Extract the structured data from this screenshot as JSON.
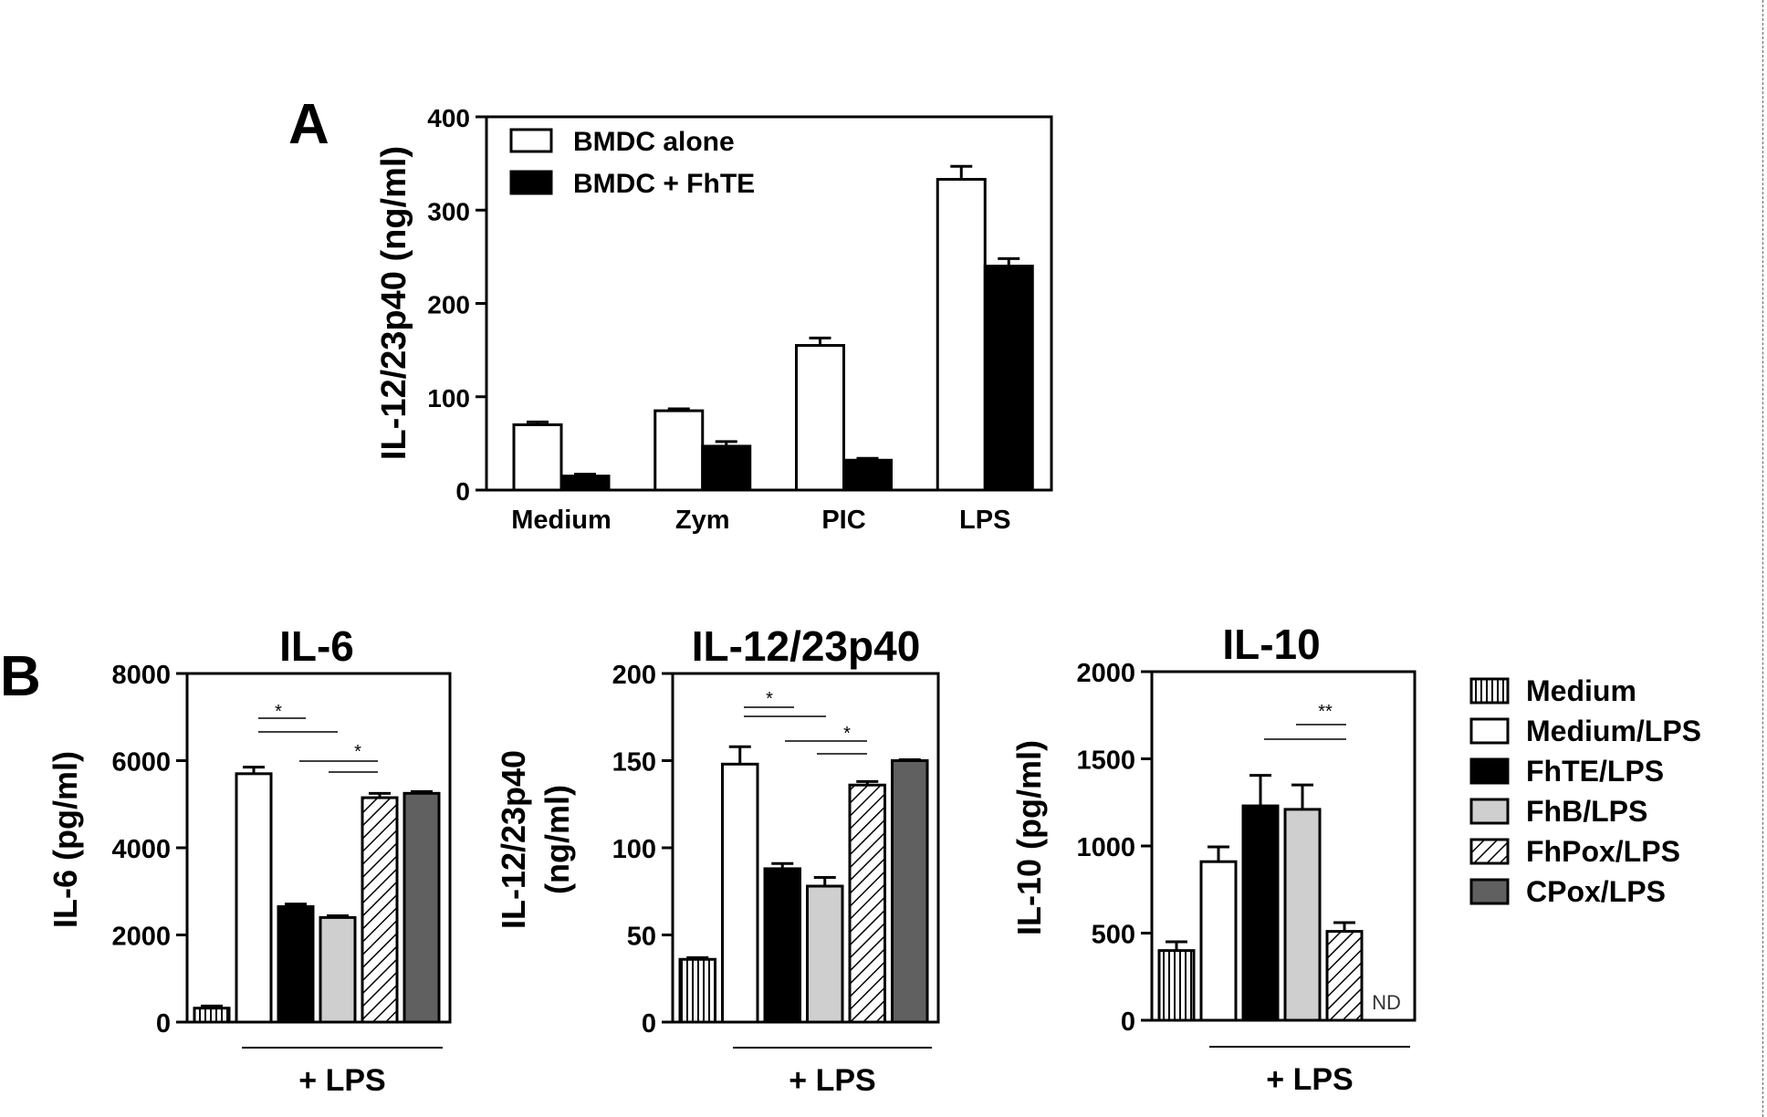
{
  "panel_labels": {
    "a": "A",
    "b": "B"
  },
  "chart_data": [
    {
      "id": "A",
      "type": "bar",
      "title": "",
      "ylabel": "IL-12/23p40 (ng/ml)",
      "xlabel": "",
      "ylim": [
        0,
        400
      ],
      "yticks": [
        0,
        100,
        200,
        300,
        400
      ],
      "categories": [
        "Medium",
        "Zym",
        "PIC",
        "LPS"
      ],
      "series": [
        {
          "name": "BMDC alone",
          "values": [
            70,
            85,
            155,
            333
          ],
          "errors": [
            3,
            2,
            8,
            14
          ],
          "fill": "white"
        },
        {
          "name": "BMDC + FhTE",
          "values": [
            15,
            47,
            32,
            240
          ],
          "errors": [
            2,
            5,
            2,
            8
          ],
          "fill": "black"
        }
      ],
      "legend_position": "top-left"
    },
    {
      "id": "B-IL6",
      "type": "bar",
      "title": "IL-6",
      "ylabel": "IL-6 (pg/ml)",
      "xlabel": "+ LPS",
      "ylim": [
        0,
        8000
      ],
      "yticks": [
        0,
        2000,
        4000,
        6000,
        8000
      ],
      "categories": [
        "Medium",
        "Medium/LPS",
        "FhTE/LPS",
        "FhB/LPS",
        "FhPox/LPS",
        "CPox/LPS"
      ],
      "values": [
        320,
        5700,
        2650,
        2400,
        5150,
        5250
      ],
      "errors": [
        50,
        150,
        60,
        40,
        100,
        40
      ],
      "annotations": [
        "*",
        "*"
      ]
    },
    {
      "id": "B-IL12",
      "type": "bar",
      "title": "IL-12/23p40",
      "ylabel": "IL-12/23p40 (ng/ml)",
      "ylabel_lines": [
        "IL-12/23p40",
        "(ng/ml)"
      ],
      "xlabel": "+ LPS",
      "ylim": [
        0,
        200
      ],
      "yticks": [
        0,
        50,
        100,
        150,
        200
      ],
      "categories": [
        "Medium",
        "Medium/LPS",
        "FhTE/LPS",
        "FhB/LPS",
        "FhPox/LPS",
        "CPox/LPS"
      ],
      "values": [
        36,
        148,
        88,
        78,
        136,
        150
      ],
      "errors": [
        1,
        10,
        3,
        5,
        2,
        0.5
      ],
      "annotations": [
        "*",
        "*"
      ]
    },
    {
      "id": "B-IL10",
      "type": "bar",
      "title": "IL-10",
      "ylabel": "IL-10 (pg/ml)",
      "xlabel": "+ LPS",
      "ylim": [
        0,
        2000
      ],
      "yticks": [
        0,
        500,
        1000,
        1500,
        2000
      ],
      "categories": [
        "Medium",
        "Medium/LPS",
        "FhTE/LPS",
        "FhB/LPS",
        "FhPox/LPS",
        "CPox/LPS"
      ],
      "values": [
        400,
        910,
        1230,
        1210,
        510,
        null
      ],
      "errors": [
        50,
        85,
        175,
        140,
        50,
        null
      ],
      "annotations": [
        "**"
      ],
      "nd_label": "ND"
    }
  ],
  "legend_b": {
    "items": [
      {
        "label": "Medium",
        "fill": "vstripe"
      },
      {
        "label": "Medium/LPS",
        "fill": "white"
      },
      {
        "label": "FhTE/LPS",
        "fill": "black"
      },
      {
        "label": "FhB/LPS",
        "fill": "lightgray"
      },
      {
        "label": "FhPox/LPS",
        "fill": "hatch"
      },
      {
        "label": "CPox/LPS",
        "fill": "darkgray"
      }
    ]
  },
  "colors": {
    "black": "#000000",
    "lightgray": "#cfcfcf",
    "darkgray": "#606060",
    "white": "#ffffff"
  }
}
